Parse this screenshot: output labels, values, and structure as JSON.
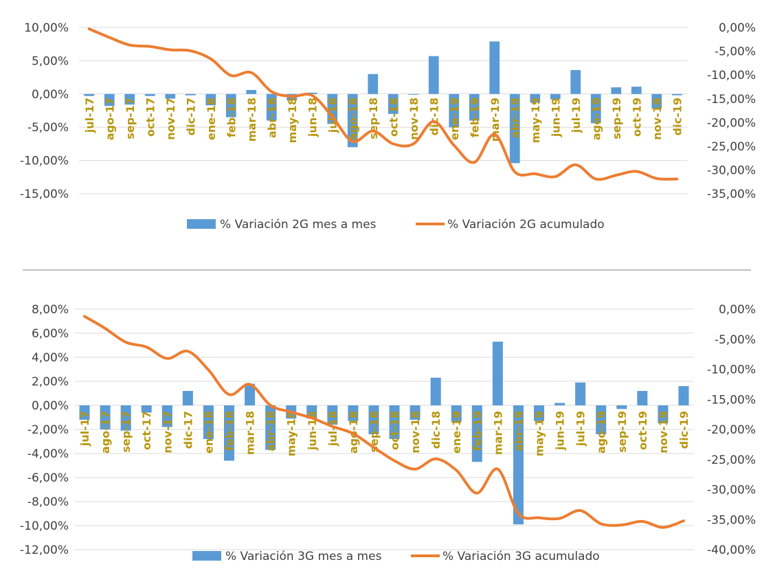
{
  "chart_data": [
    {
      "type": "bar+line",
      "title": "",
      "categories": [
        "jul-17",
        "ago-17",
        "sep-17",
        "oct-17",
        "nov-17",
        "dic-17",
        "ene-18",
        "feb-18",
        "mar-18",
        "abr-18",
        "may-18",
        "jun-18",
        "jul-18",
        "ago-18",
        "sep-18",
        "oct-18",
        "nov-18",
        "dic-18",
        "ene-19",
        "feb-19",
        "mar-19",
        "abr-19",
        "may-19",
        "jun-19",
        "jul-19",
        "ago-19",
        "sep-19",
        "oct-19",
        "nov-19",
        "dic-19"
      ],
      "y_left_ticks": [
        "10,00%",
        "5,00%",
        "0,00%",
        "-5,00%",
        "-10,00%",
        "-15,00%"
      ],
      "y_left_range": [
        -15,
        10
      ],
      "y_right_ticks": [
        "0,00%",
        "-5,00%",
        "-10,00%",
        "-15,00%",
        "-20,00%",
        "-25,00%",
        "-30,00%",
        "-35,00%"
      ],
      "y_right_range": [
        -35,
        0
      ],
      "series": [
        {
          "name": "% Variación 2G mes a mes",
          "kind": "bar",
          "axis": "left",
          "values": [
            -0.3,
            -1.8,
            -1.6,
            -0.3,
            -0.7,
            -0.2,
            -1.7,
            -3.5,
            0.6,
            -4.0,
            -1.0,
            0.2,
            -4.5,
            -8.0,
            3.0,
            -3.0,
            0.0,
            5.7,
            -5.0,
            -4.0,
            7.9,
            -10.4,
            -1.3,
            -0.8,
            3.6,
            -4.4,
            1.0,
            1.1,
            -2.2,
            -0.2
          ]
        },
        {
          "name": "% Variación 2G acumulado",
          "kind": "line",
          "axis": "right",
          "values": [
            -0.3,
            -2.1,
            -3.7,
            -4.0,
            -4.7,
            -4.9,
            -6.6,
            -10.1,
            -9.5,
            -13.5,
            -14.5,
            -14.3,
            -18.8,
            -24.0,
            -21.8,
            -24.5,
            -24.5,
            -19.8,
            -24.8,
            -28.4,
            -22.5,
            -30.4,
            -30.8,
            -31.4,
            -28.9,
            -31.9,
            -31.1,
            -30.3,
            -31.8,
            -31.9
          ]
        }
      ]
    },
    {
      "type": "bar+line",
      "title": "",
      "categories": [
        "jul-17",
        "ago-17",
        "sep-17",
        "oct-17",
        "nov-17",
        "dic-17",
        "ene-18",
        "feb-18",
        "mar-18",
        "abr-18",
        "may-18",
        "jun-18",
        "jul-18",
        "ago-18",
        "sep-18",
        "oct-18",
        "nov-18",
        "dic-18",
        "ene-19",
        "feb-19",
        "mar-19",
        "abr-19",
        "may-19",
        "jun-19",
        "jul-19",
        "ago-19",
        "sep-19",
        "oct-19",
        "nov-19",
        "dic-19"
      ],
      "y_left_ticks": [
        "8,00%",
        "6,00%",
        "4,00%",
        "2,00%",
        "0,00%",
        "-2,00%",
        "-4,00%",
        "-6,00%",
        "-8,00%",
        "-10,00%",
        "-12,00%"
      ],
      "y_left_range": [
        -12,
        8
      ],
      "y_right_ticks": [
        "0,00%",
        "-5,00%",
        "-10,00%",
        "-15,00%",
        "-20,00%",
        "-25,00%",
        "-30,00%",
        "-35,00%",
        "-40,00%"
      ],
      "y_right_range": [
        -40,
        0
      ],
      "series": [
        {
          "name": "% Variación 3G mes a mes",
          "kind": "bar",
          "axis": "left",
          "values": [
            -1.2,
            -2.0,
            -2.1,
            -0.6,
            -1.8,
            1.2,
            -2.8,
            -4.6,
            1.8,
            -3.7,
            -1.1,
            -1.1,
            -1.6,
            -1.3,
            -2.4,
            -2.8,
            -1.2,
            2.3,
            -1.4,
            -4.7,
            5.3,
            -9.9,
            -1.3,
            0.2,
            1.9,
            -2.4,
            -0.3,
            1.2,
            -1.5,
            1.6
          ]
        },
        {
          "name": "% Variación 3G acumulado",
          "kind": "line",
          "axis": "right",
          "values": [
            -1.2,
            -3.2,
            -5.5,
            -6.3,
            -8.2,
            -7.0,
            -10.1,
            -14.2,
            -12.5,
            -16.0,
            -17.1,
            -18.1,
            -19.5,
            -20.7,
            -23.0,
            -25.2,
            -26.6,
            -24.9,
            -26.8,
            -30.6,
            -26.6,
            -34.0,
            -34.7,
            -34.8,
            -33.5,
            -35.7,
            -35.9,
            -35.3,
            -36.3,
            -35.2
          ]
        }
      ]
    }
  ]
}
